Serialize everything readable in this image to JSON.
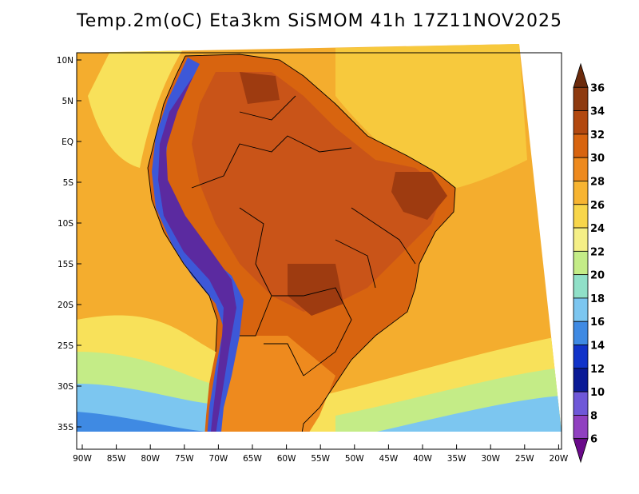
{
  "title": "Temp.2m(oC) Eta3km SiSMOM 41h 17Z11NOV2025",
  "lat_ticks": [
    "10N",
    "5N",
    "EQ",
    "5S",
    "10S",
    "15S",
    "20S",
    "25S",
    "30S",
    "35S"
  ],
  "lon_ticks": [
    "90W",
    "85W",
    "80W",
    "75W",
    "70W",
    "65W",
    "60W",
    "55W",
    "50W",
    "45W",
    "40W",
    "35W",
    "30W",
    "25W",
    "20W"
  ],
  "colorbar": {
    "labels": [
      "36",
      "34",
      "32",
      "30",
      "28",
      "26",
      "24",
      "22",
      "20",
      "18",
      "16",
      "14",
      "12",
      "10",
      "8",
      "6"
    ],
    "colors": [
      "#6b2a0c",
      "#8e3a10",
      "#b2480f",
      "#d8640f",
      "#ee8a1e",
      "#f7b431",
      "#f8d64a",
      "#f5ef86",
      "#c4ec87",
      "#90e0c8",
      "#7cc6f0",
      "#3f8ae3",
      "#1133c9",
      "#0a1a96",
      "#6f58d8",
      "#9040c0",
      "#6a0a8a"
    ]
  },
  "palette": {
    "ocean_warm": "#f4ad2e",
    "ocean_mid": "#f7c93d",
    "ocean_cool": "#f8e15a",
    "land_hot": "#c95418",
    "land_hotter": "#9e3b10",
    "andes_cold": "#3d58d8",
    "andes_coldest": "#5b2aa0",
    "border": "#000000"
  }
}
